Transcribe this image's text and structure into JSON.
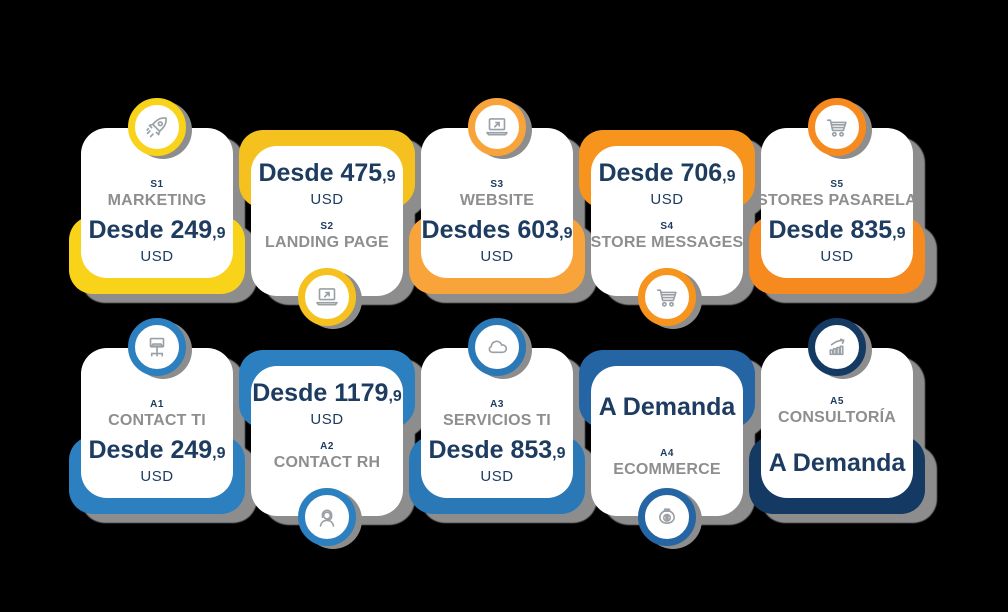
{
  "canvas": {
    "background": "#000000"
  },
  "palette": {
    "price_text": "#1E3C60",
    "title_text": "#8E8E8E",
    "shadow": "#8D8D8D",
    "icon_stroke": "#9AA0A5",
    "card_background": "#FFFFFF"
  },
  "cards": [
    {
      "id": "S1",
      "title": "MARKETING",
      "price": "Desde 249",
      "price_decimal": ",9",
      "currency": "USD",
      "accent_color": "#F8D31A",
      "icon": "rocket"
    },
    {
      "id": "S2",
      "title": "LANDING PAGE",
      "price": "Desde 475",
      "price_decimal": ",9",
      "currency": "USD",
      "accent_color": "#F4C11F",
      "icon": "laptop-arrow"
    },
    {
      "id": "S3",
      "title": "WEBSITE",
      "price": "Desdes 603",
      "price_decimal": ",9",
      "currency": "USD",
      "accent_color": "#F9A43B",
      "icon": "laptop-arrow"
    },
    {
      "id": "S4",
      "title": "STORE MESSAGES",
      "price": "Desde 706",
      "price_decimal": ",9",
      "currency": "USD",
      "accent_color": "#F7941E",
      "icon": "cart"
    },
    {
      "id": "S5",
      "title": "STORES PASARELA",
      "price": "Desde 835",
      "price_decimal": ",9",
      "currency": "USD",
      "accent_color": "#F68A1E",
      "icon": "cart"
    },
    {
      "id": "A1",
      "title": "CONTACT TI",
      "price": "Desde 249",
      "price_decimal": ",9",
      "currency": "USD",
      "accent_color": "#2C80BF",
      "icon": "monitor-network"
    },
    {
      "id": "A2",
      "title": "CONTACT RH",
      "price": "Desde 1179",
      "price_decimal": ",9",
      "currency": "USD",
      "accent_color": "#2C80BF",
      "icon": "headset-agent"
    },
    {
      "id": "A3",
      "title": "SERVICIOS TI",
      "price": "Desde 853",
      "price_decimal": ",9",
      "currency": "USD",
      "accent_color": "#2A78B6",
      "icon": "cloud"
    },
    {
      "id": "A4",
      "title": "ECOMMERCE",
      "price": "A Demanda",
      "price_decimal": "",
      "currency": "",
      "accent_color": "#2565A4",
      "icon": "money-bag"
    },
    {
      "id": "A5",
      "title": "CONSULTORÍA",
      "price": "A Demanda",
      "price_decimal": "",
      "currency": "",
      "accent_color": "#143962",
      "icon": "growth-chart"
    }
  ]
}
